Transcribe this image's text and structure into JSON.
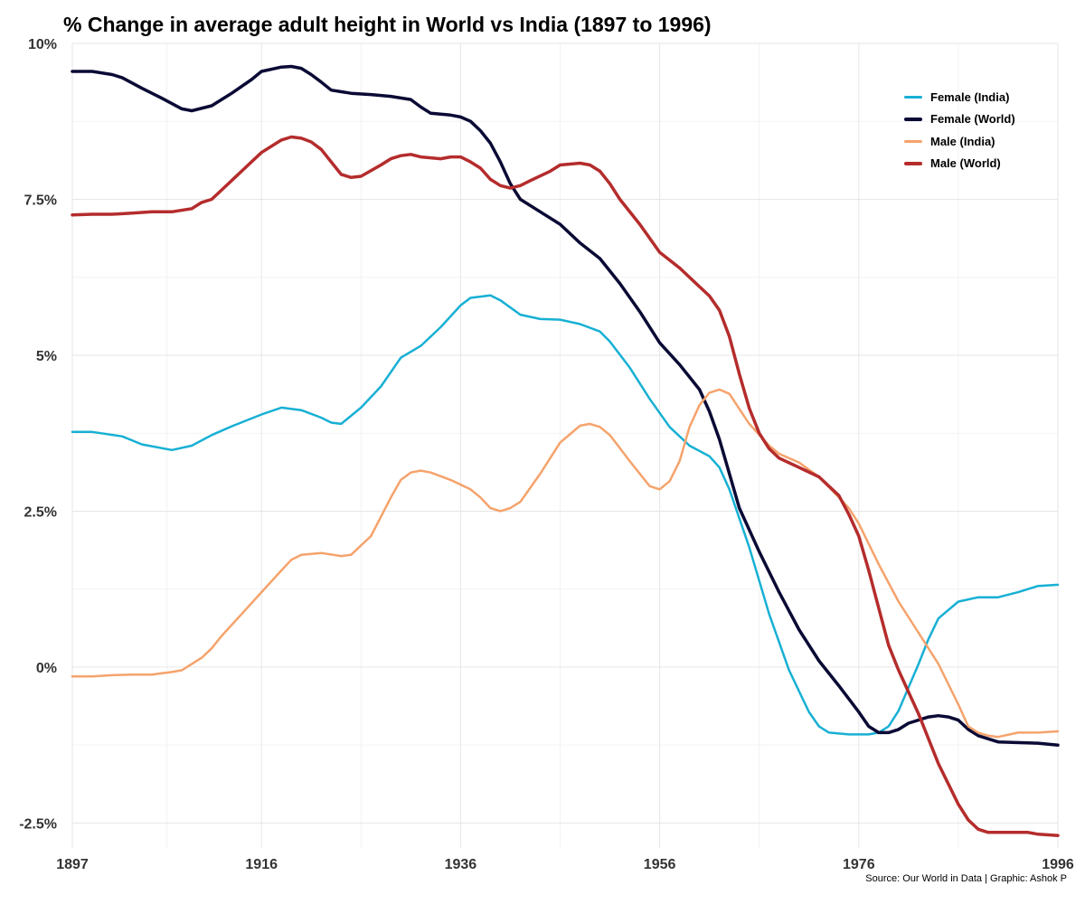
{
  "chart_data": {
    "type": "line",
    "title": "% Change in average adult height in World vs India (1897 to 1996)",
    "xlabel": "",
    "ylabel": "",
    "xlim": [
      1897,
      1996
    ],
    "ylim": [
      -2.9,
      10
    ],
    "x_ticks": [
      1897,
      1916,
      1936,
      1956,
      1976,
      1996
    ],
    "x_minor": [
      1906.5,
      1926,
      1946,
      1966,
      1986
    ],
    "y_ticks": [
      {
        "value": 10,
        "label": "10%"
      },
      {
        "value": 7.5,
        "label": "7.5%"
      },
      {
        "value": 5,
        "label": "5%"
      },
      {
        "value": 2.5,
        "label": "2.5%"
      },
      {
        "value": 0,
        "label": "0%"
      },
      {
        "value": -2.5,
        "label": "-2.5%"
      }
    ],
    "y_minor": [
      8.75,
      6.25,
      3.75,
      1.25,
      -1.25
    ],
    "grid": true,
    "legend_position": "top-right",
    "series": [
      {
        "name": "Female (India)",
        "color": "#17b0d4",
        "width": 2.5,
        "points": [
          [
            1897,
            3.77
          ],
          [
            1899,
            3.77
          ],
          [
            1902,
            3.7
          ],
          [
            1904,
            3.57
          ],
          [
            1907,
            3.48
          ],
          [
            1909,
            3.55
          ],
          [
            1911,
            3.72
          ],
          [
            1913,
            3.86
          ],
          [
            1916,
            4.05
          ],
          [
            1918,
            4.16
          ],
          [
            1920,
            4.12
          ],
          [
            1922,
            4.0
          ],
          [
            1923,
            3.92
          ],
          [
            1924,
            3.9
          ],
          [
            1926,
            4.16
          ],
          [
            1928,
            4.5
          ],
          [
            1930,
            4.96
          ],
          [
            1932,
            5.15
          ],
          [
            1934,
            5.45
          ],
          [
            1936,
            5.8
          ],
          [
            1937,
            5.92
          ],
          [
            1939,
            5.96
          ],
          [
            1940,
            5.88
          ],
          [
            1942,
            5.65
          ],
          [
            1944,
            5.58
          ],
          [
            1946,
            5.57
          ],
          [
            1948,
            5.5
          ],
          [
            1950,
            5.38
          ],
          [
            1951,
            5.22
          ],
          [
            1953,
            4.8
          ],
          [
            1955,
            4.3
          ],
          [
            1957,
            3.85
          ],
          [
            1959,
            3.55
          ],
          [
            1961,
            3.38
          ],
          [
            1962,
            3.2
          ],
          [
            1963,
            2.85
          ],
          [
            1965,
            1.92
          ],
          [
            1967,
            0.85
          ],
          [
            1969,
            -0.05
          ],
          [
            1971,
            -0.72
          ],
          [
            1972,
            -0.95
          ],
          [
            1973,
            -1.05
          ],
          [
            1975,
            -1.08
          ],
          [
            1977,
            -1.08
          ],
          [
            1978,
            -1.05
          ],
          [
            1979,
            -0.95
          ],
          [
            1980,
            -0.7
          ],
          [
            1982,
            0.05
          ],
          [
            1983,
            0.45
          ],
          [
            1984,
            0.78
          ],
          [
            1986,
            1.05
          ],
          [
            1988,
            1.12
          ],
          [
            1990,
            1.12
          ],
          [
            1992,
            1.2
          ],
          [
            1994,
            1.3
          ],
          [
            1996,
            1.32
          ]
        ]
      },
      {
        "name": "Female (World)",
        "color": "#0a0a35",
        "width": 3.5,
        "points": [
          [
            1897,
            9.55
          ],
          [
            1899,
            9.55
          ],
          [
            1901,
            9.5
          ],
          [
            1902,
            9.45
          ],
          [
            1904,
            9.28
          ],
          [
            1906,
            9.12
          ],
          [
            1908,
            8.95
          ],
          [
            1909,
            8.92
          ],
          [
            1911,
            9.0
          ],
          [
            1913,
            9.2
          ],
          [
            1915,
            9.42
          ],
          [
            1916,
            9.55
          ],
          [
            1918,
            9.62
          ],
          [
            1919,
            9.63
          ],
          [
            1920,
            9.6
          ],
          [
            1921,
            9.5
          ],
          [
            1922,
            9.38
          ],
          [
            1923,
            9.25
          ],
          [
            1925,
            9.2
          ],
          [
            1927,
            9.18
          ],
          [
            1929,
            9.15
          ],
          [
            1931,
            9.1
          ],
          [
            1932,
            8.98
          ],
          [
            1933,
            8.88
          ],
          [
            1935,
            8.85
          ],
          [
            1936,
            8.82
          ],
          [
            1937,
            8.75
          ],
          [
            1938,
            8.6
          ],
          [
            1939,
            8.4
          ],
          [
            1940,
            8.1
          ],
          [
            1941,
            7.75
          ],
          [
            1942,
            7.5
          ],
          [
            1944,
            7.3
          ],
          [
            1946,
            7.1
          ],
          [
            1948,
            6.8
          ],
          [
            1950,
            6.55
          ],
          [
            1952,
            6.15
          ],
          [
            1954,
            5.7
          ],
          [
            1956,
            5.2
          ],
          [
            1958,
            4.85
          ],
          [
            1960,
            4.45
          ],
          [
            1961,
            4.1
          ],
          [
            1962,
            3.65
          ],
          [
            1963,
            3.1
          ],
          [
            1964,
            2.55
          ],
          [
            1966,
            1.85
          ],
          [
            1968,
            1.2
          ],
          [
            1970,
            0.6
          ],
          [
            1972,
            0.1
          ],
          [
            1974,
            -0.3
          ],
          [
            1976,
            -0.72
          ],
          [
            1977,
            -0.95
          ],
          [
            1978,
            -1.05
          ],
          [
            1979,
            -1.05
          ],
          [
            1980,
            -1.0
          ],
          [
            1981,
            -0.9
          ],
          [
            1983,
            -0.8
          ],
          [
            1984,
            -0.78
          ],
          [
            1985,
            -0.8
          ],
          [
            1986,
            -0.85
          ],
          [
            1987,
            -1.0
          ],
          [
            1988,
            -1.1
          ],
          [
            1990,
            -1.2
          ],
          [
            1994,
            -1.22
          ],
          [
            1996,
            -1.25
          ]
        ]
      },
      {
        "name": "Male (India)",
        "color": "#f5a36c",
        "width": 2.5,
        "points": [
          [
            1897,
            -0.15
          ],
          [
            1899,
            -0.15
          ],
          [
            1901,
            -0.13
          ],
          [
            1903,
            -0.12
          ],
          [
            1905,
            -0.12
          ],
          [
            1906,
            -0.1
          ],
          [
            1907,
            -0.08
          ],
          [
            1908,
            -0.05
          ],
          [
            1910,
            0.15
          ],
          [
            1911,
            0.3
          ],
          [
            1912,
            0.5
          ],
          [
            1914,
            0.85
          ],
          [
            1916,
            1.2
          ],
          [
            1918,
            1.55
          ],
          [
            1919,
            1.72
          ],
          [
            1920,
            1.8
          ],
          [
            1922,
            1.83
          ],
          [
            1924,
            1.78
          ],
          [
            1925,
            1.8
          ],
          [
            1927,
            2.1
          ],
          [
            1929,
            2.72
          ],
          [
            1930,
            3.0
          ],
          [
            1931,
            3.12
          ],
          [
            1932,
            3.15
          ],
          [
            1933,
            3.12
          ],
          [
            1935,
            3.0
          ],
          [
            1937,
            2.85
          ],
          [
            1938,
            2.72
          ],
          [
            1939,
            2.55
          ],
          [
            1940,
            2.5
          ],
          [
            1941,
            2.55
          ],
          [
            1942,
            2.65
          ],
          [
            1944,
            3.1
          ],
          [
            1946,
            3.6
          ],
          [
            1948,
            3.87
          ],
          [
            1949,
            3.9
          ],
          [
            1950,
            3.85
          ],
          [
            1951,
            3.72
          ],
          [
            1953,
            3.3
          ],
          [
            1955,
            2.9
          ],
          [
            1956,
            2.85
          ],
          [
            1957,
            2.98
          ],
          [
            1958,
            3.3
          ],
          [
            1959,
            3.85
          ],
          [
            1960,
            4.2
          ],
          [
            1961,
            4.4
          ],
          [
            1962,
            4.45
          ],
          [
            1963,
            4.38
          ],
          [
            1965,
            3.9
          ],
          [
            1967,
            3.55
          ],
          [
            1968,
            3.42
          ],
          [
            1970,
            3.28
          ],
          [
            1972,
            3.05
          ],
          [
            1974,
            2.72
          ],
          [
            1975,
            2.55
          ],
          [
            1976,
            2.3
          ],
          [
            1978,
            1.65
          ],
          [
            1980,
            1.05
          ],
          [
            1982,
            0.55
          ],
          [
            1984,
            0.05
          ],
          [
            1986,
            -0.6
          ],
          [
            1987,
            -0.95
          ],
          [
            1988,
            -1.05
          ],
          [
            1989,
            -1.1
          ],
          [
            1990,
            -1.12
          ],
          [
            1992,
            -1.05
          ],
          [
            1994,
            -1.05
          ],
          [
            1996,
            -1.03
          ]
        ]
      },
      {
        "name": "Male (World)",
        "color": "#b52c2c",
        "width": 3.5,
        "points": [
          [
            1897,
            7.25
          ],
          [
            1899,
            7.26
          ],
          [
            1901,
            7.26
          ],
          [
            1903,
            7.28
          ],
          [
            1905,
            7.3
          ],
          [
            1907,
            7.3
          ],
          [
            1909,
            7.35
          ],
          [
            1910,
            7.45
          ],
          [
            1911,
            7.5
          ],
          [
            1912,
            7.65
          ],
          [
            1914,
            7.95
          ],
          [
            1916,
            8.25
          ],
          [
            1918,
            8.45
          ],
          [
            1919,
            8.5
          ],
          [
            1920,
            8.48
          ],
          [
            1921,
            8.42
          ],
          [
            1922,
            8.3
          ],
          [
            1923,
            8.1
          ],
          [
            1924,
            7.9
          ],
          [
            1925,
            7.85
          ],
          [
            1926,
            7.87
          ],
          [
            1928,
            8.05
          ],
          [
            1929,
            8.15
          ],
          [
            1930,
            8.2
          ],
          [
            1931,
            8.22
          ],
          [
            1932,
            8.18
          ],
          [
            1934,
            8.15
          ],
          [
            1935,
            8.18
          ],
          [
            1936,
            8.18
          ],
          [
            1937,
            8.1
          ],
          [
            1938,
            8.0
          ],
          [
            1939,
            7.82
          ],
          [
            1940,
            7.72
          ],
          [
            1941,
            7.68
          ],
          [
            1942,
            7.72
          ],
          [
            1943,
            7.8
          ],
          [
            1945,
            7.95
          ],
          [
            1946,
            8.05
          ],
          [
            1948,
            8.08
          ],
          [
            1949,
            8.05
          ],
          [
            1950,
            7.95
          ],
          [
            1951,
            7.75
          ],
          [
            1952,
            7.5
          ],
          [
            1954,
            7.1
          ],
          [
            1956,
            6.65
          ],
          [
            1958,
            6.4
          ],
          [
            1960,
            6.1
          ],
          [
            1961,
            5.95
          ],
          [
            1962,
            5.72
          ],
          [
            1963,
            5.3
          ],
          [
            1964,
            4.7
          ],
          [
            1965,
            4.15
          ],
          [
            1966,
            3.75
          ],
          [
            1967,
            3.5
          ],
          [
            1968,
            3.35
          ],
          [
            1970,
            3.2
          ],
          [
            1972,
            3.05
          ],
          [
            1974,
            2.75
          ],
          [
            1975,
            2.45
          ],
          [
            1976,
            2.1
          ],
          [
            1977,
            1.55
          ],
          [
            1978,
            0.95
          ],
          [
            1979,
            0.35
          ],
          [
            1980,
            -0.05
          ],
          [
            1982,
            -0.75
          ],
          [
            1984,
            -1.55
          ],
          [
            1986,
            -2.2
          ],
          [
            1987,
            -2.45
          ],
          [
            1988,
            -2.6
          ],
          [
            1989,
            -2.65
          ],
          [
            1991,
            -2.65
          ],
          [
            1993,
            -2.65
          ],
          [
            1994,
            -2.68
          ],
          [
            1996,
            -2.7
          ]
        ]
      }
    ]
  },
  "source_text": "Source: Our World in Data | Graphic: Ashok P"
}
